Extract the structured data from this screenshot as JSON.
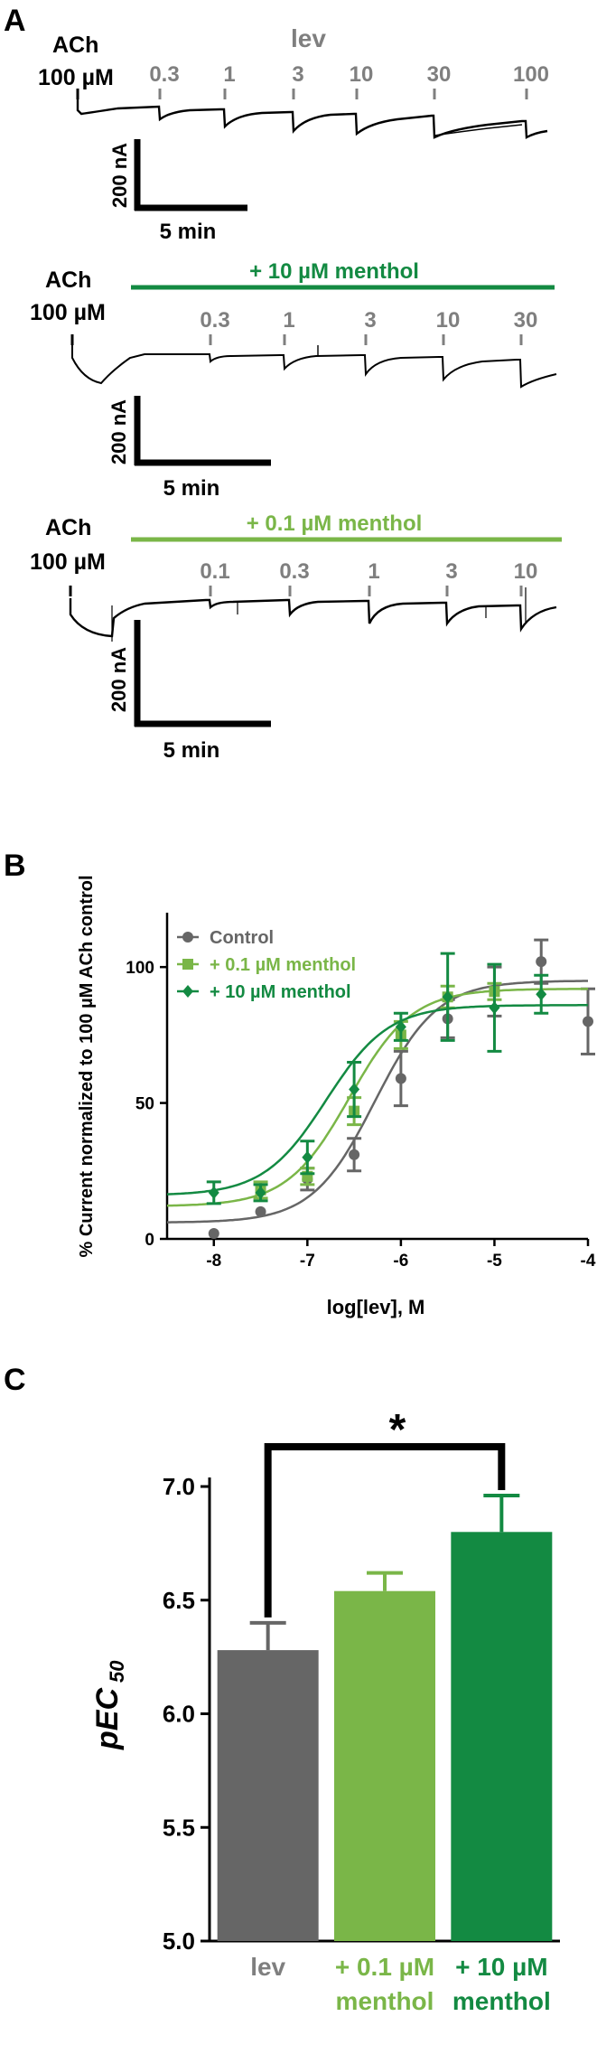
{
  "colors": {
    "control": "#666666",
    "menthol_low": "#7ab648",
    "menthol_high": "#138a42",
    "trace": "#000000",
    "scale": "#000000",
    "axis": "#000000",
    "label_gray": "#7f7f7f"
  },
  "panels": {
    "a": "A",
    "b": "B",
    "c": "C"
  },
  "panel_a": {
    "lev_label": "lev",
    "scale_y_label": "200 nA",
    "scale_x_label": "5 min",
    "traces": [
      {
        "ach_label": "ACh",
        "ach_conc": "100 µM",
        "bar_label": "",
        "doses": [
          "0.3",
          "1",
          "3",
          "10",
          "30",
          "100"
        ]
      },
      {
        "ach_label": "ACh",
        "ach_conc": "100 µM",
        "bar_label": "+ 10 µM menthol",
        "doses": [
          "0.3",
          "1",
          "3",
          "10",
          "30"
        ]
      },
      {
        "ach_label": "ACh",
        "ach_conc": "100 µM",
        "bar_label": "+ 0.1 µM menthol",
        "doses": [
          "0.1",
          "0.3",
          "1",
          "3",
          "10"
        ]
      }
    ]
  },
  "chart_data": [
    {
      "type": "scatter",
      "title": "",
      "xlabel": "log[lev], M",
      "ylabel": "% Current normalized to 100 µM ACh control",
      "xlim": [
        -8.5,
        -4
      ],
      "ylim": [
        0,
        120
      ],
      "xticks": [
        -8,
        -7,
        -6,
        -5,
        -4
      ],
      "yticks": [
        0,
        50,
        100
      ],
      "legend_position": "top-left",
      "series": [
        {
          "name": "Control",
          "marker": "circle",
          "color_key": "control",
          "x": [
            -8,
            -7.5,
            -7,
            -6.5,
            -6,
            -5.5,
            -5,
            -4.5,
            -4
          ],
          "y": [
            2,
            10,
            22,
            31,
            59,
            81,
            91,
            102,
            80
          ],
          "err": [
            0,
            0,
            4,
            6,
            10,
            7,
            9,
            8,
            12
          ],
          "fit": {
            "bottom": 6,
            "top": 95,
            "logEC50": -6.28,
            "hill": 1.3
          }
        },
        {
          "name": "+ 0.1 µM menthol",
          "marker": "square",
          "color_key": "menthol_low",
          "x": [
            -7.5,
            -7,
            -6.5,
            -6,
            -5.5,
            -5
          ],
          "y": [
            18,
            23,
            47,
            75,
            89,
            91
          ],
          "err": [
            3,
            3,
            5,
            5,
            4,
            3
          ],
          "fit": {
            "bottom": 12,
            "top": 92,
            "logEC50": -6.55,
            "hill": 1.3
          }
        },
        {
          "name": "+ 10 µM menthol",
          "marker": "diamond",
          "color_key": "menthol_high",
          "x": [
            -8,
            -7.5,
            -7,
            -6.5,
            -6,
            -5.5,
            -5,
            -4.5
          ],
          "y": [
            17,
            17,
            30,
            55,
            78,
            89,
            85,
            90
          ],
          "err": [
            4,
            3,
            6,
            10,
            5,
            16,
            16,
            7
          ],
          "fit": {
            "bottom": 16,
            "top": 86,
            "logEC50": -6.8,
            "hill": 1.3
          }
        }
      ]
    },
    {
      "type": "bar",
      "title": "",
      "xlabel": "",
      "ylabel": "pEC50",
      "ylim": [
        5.0,
        7.0
      ],
      "yticks": [
        "5.0",
        "5.5",
        "6.0",
        "6.5",
        "7.0"
      ],
      "categories": [
        "lev",
        "+ 0.1 µM menthol",
        "+ 10 µM menthol"
      ],
      "category_lines": [
        [
          "lev"
        ],
        [
          "+ 0.1 µM",
          "menthol"
        ],
        [
          "+ 10 µM",
          "menthol"
        ]
      ],
      "values": [
        6.28,
        6.54,
        6.8
      ],
      "err": [
        0.12,
        0.08,
        0.16
      ],
      "bar_color_keys": [
        "control",
        "menthol_low",
        "menthol_high"
      ],
      "significance": {
        "from": 0,
        "to": 2,
        "label": "*"
      }
    }
  ]
}
